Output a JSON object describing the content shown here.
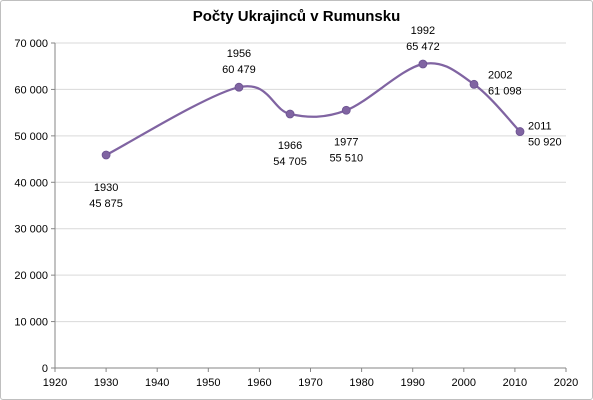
{
  "chart_data": {
    "type": "line",
    "title": "Počty Ukrajinců v Rumunsku",
    "xlabel": "",
    "ylabel": "",
    "xlim": [
      1920,
      2020
    ],
    "ylim": [
      0,
      70000
    ],
    "x_ticks": [
      "1920",
      "1930",
      "1940",
      "1950",
      "1960",
      "1970",
      "1980",
      "1990",
      "2000",
      "2010",
      "2020"
    ],
    "y_ticks": [
      "0",
      "10 000",
      "20 000",
      "30 000",
      "40 000",
      "50 000",
      "60 000",
      "70 000"
    ],
    "grid": "horizontal",
    "legend": "none",
    "series": [
      {
        "points": [
          {
            "x": 1930,
            "y": 45875,
            "label_year": "1930",
            "label_value": "45 875"
          },
          {
            "x": 1956,
            "y": 60479,
            "label_year": "1956",
            "label_value": "60 479"
          },
          {
            "x": 1966,
            "y": 54705,
            "label_year": "1966",
            "label_value": "54 705"
          },
          {
            "x": 1977,
            "y": 55510,
            "label_year": "1977",
            "label_value": "55 510"
          },
          {
            "x": 1992,
            "y": 65472,
            "label_year": "1992",
            "label_value": "65 472"
          },
          {
            "x": 2002,
            "y": 61098,
            "label_year": "2002",
            "label_value": "61 098"
          },
          {
            "x": 2011,
            "y": 50920,
            "label_year": "2011",
            "label_value": "50 920"
          }
        ]
      }
    ],
    "colors": {
      "line": "#8064a2",
      "marker": "#8064a2",
      "grid": "#d9d9d9",
      "axis": "#868686"
    }
  }
}
